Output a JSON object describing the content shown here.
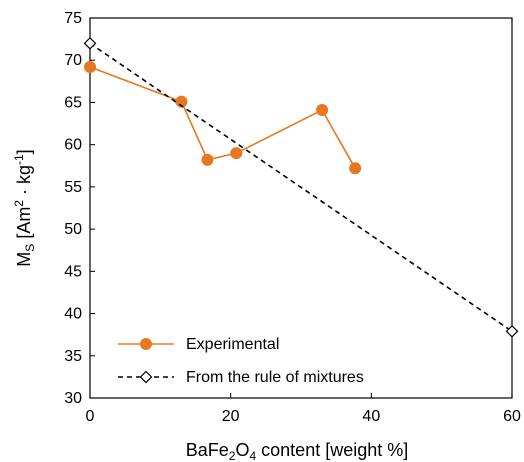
{
  "chart_data": {
    "type": "line",
    "xlabel_parts": {
      "base": "BaFe",
      "sub1": "2",
      "mid": "O",
      "sub2": "4",
      "rest": " content [weight %]"
    },
    "ylabel_parts": {
      "base": "M",
      "sub": "S",
      "rest1": " [Am",
      "sup1": "2",
      "rest2": " · kg",
      "sup2": "-1",
      "rest3": "]"
    },
    "xlim": [
      0,
      60
    ],
    "ylim": [
      30,
      75
    ],
    "xticks": [
      0,
      20,
      40,
      60
    ],
    "yticks": [
      30,
      35,
      40,
      45,
      50,
      55,
      60,
      65,
      70,
      75
    ],
    "grid": false,
    "legend_position": "bottom-left",
    "series": [
      {
        "name": "Experimental",
        "color": "#e87722",
        "line_style": "solid",
        "marker": "filled-circle",
        "points": [
          {
            "x": 0,
            "y": 69.2
          },
          {
            "x": 13,
            "y": 65.1
          },
          {
            "x": 16.7,
            "y": 58.2
          },
          {
            "x": 20.8,
            "y": 59.0
          },
          {
            "x": 33,
            "y": 64.1
          },
          {
            "x": 37.7,
            "y": 57.2
          }
        ]
      },
      {
        "name": "From the rule of mixtures",
        "color": "#000000",
        "line_style": "dashed",
        "marker": "open-diamond",
        "points": [
          {
            "x": 0,
            "y": 72.0
          },
          {
            "x": 60,
            "y": 37.9
          }
        ]
      }
    ]
  }
}
